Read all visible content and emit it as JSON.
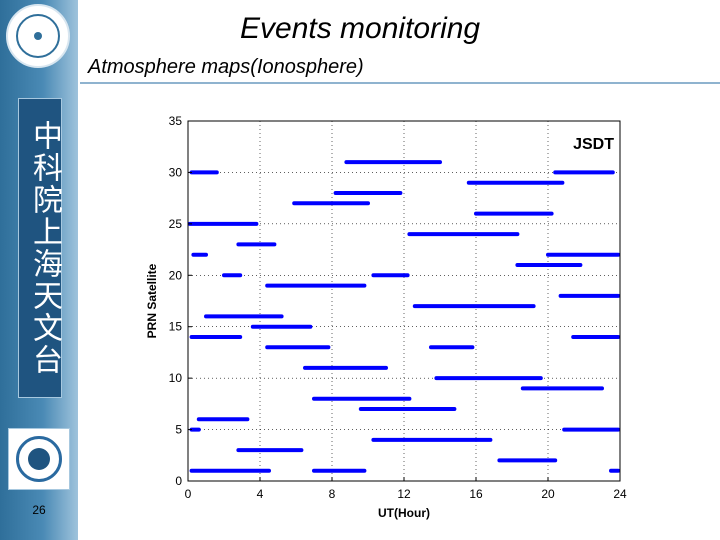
{
  "slide": {
    "title": "Events monitoring",
    "subtitle": "Atmosphere maps(Ionosphere)",
    "organization": "中科院上海天文台",
    "page_number": "26",
    "accent_color": "#2f6f9a"
  },
  "chart_data": {
    "type": "scatter",
    "annotation": "JSDT",
    "xlabel": "UT(Hour)",
    "ylabel": "PRN Satellite",
    "xlim": [
      0,
      24
    ],
    "ylim": [
      0,
      35
    ],
    "xticks": [
      "0",
      "4",
      "8",
      "12",
      "16",
      "20",
      "24"
    ],
    "yticks": [
      "0",
      "5",
      "10",
      "15",
      "20",
      "25",
      "30",
      "35"
    ],
    "grid": true,
    "marker_color": "#0000ff",
    "tracks": [
      {
        "prn": 30,
        "start": 0.2,
        "end": 1.6
      },
      {
        "prn": 25,
        "start": 0.1,
        "end": 3.8
      },
      {
        "prn": 22,
        "start": 0.3,
        "end": 1.0
      },
      {
        "prn": 20,
        "start": 2.0,
        "end": 2.9
      },
      {
        "prn": 16,
        "start": 1.0,
        "end": 5.2
      },
      {
        "prn": 14,
        "start": 0.2,
        "end": 2.9
      },
      {
        "prn": 6,
        "start": 0.6,
        "end": 3.3
      },
      {
        "prn": 1,
        "start": 0.2,
        "end": 4.5
      },
      {
        "prn": 3,
        "start": 2.8,
        "end": 6.3
      },
      {
        "prn": 5,
        "start": 0.2,
        "end": 0.6
      },
      {
        "prn": 23,
        "start": 2.8,
        "end": 4.8
      },
      {
        "prn": 19,
        "start": 4.4,
        "end": 9.8
      },
      {
        "prn": 15,
        "start": 3.6,
        "end": 6.8
      },
      {
        "prn": 13,
        "start": 4.4,
        "end": 7.8
      },
      {
        "prn": 27,
        "start": 5.9,
        "end": 10.0
      },
      {
        "prn": 31,
        "start": 8.8,
        "end": 14.0
      },
      {
        "prn": 28,
        "start": 8.2,
        "end": 11.8
      },
      {
        "prn": 11,
        "start": 6.5,
        "end": 11.0
      },
      {
        "prn": 8,
        "start": 7.0,
        "end": 12.3
      },
      {
        "prn": 1,
        "start": 7.0,
        "end": 9.8
      },
      {
        "prn": 20,
        "start": 10.3,
        "end": 12.2
      },
      {
        "prn": 7,
        "start": 9.6,
        "end": 14.8
      },
      {
        "prn": 4,
        "start": 10.3,
        "end": 16.8
      },
      {
        "prn": 24,
        "start": 12.3,
        "end": 18.3
      },
      {
        "prn": 17,
        "start": 12.6,
        "end": 19.2
      },
      {
        "prn": 13,
        "start": 13.5,
        "end": 15.8
      },
      {
        "prn": 10,
        "start": 13.8,
        "end": 19.6
      },
      {
        "prn": 29,
        "start": 15.6,
        "end": 20.8
      },
      {
        "prn": 26,
        "start": 16.0,
        "end": 20.2
      },
      {
        "prn": 21,
        "start": 18.3,
        "end": 21.8
      },
      {
        "prn": 22,
        "start": 20.0,
        "end": 23.9
      },
      {
        "prn": 30,
        "start": 20.4,
        "end": 23.6
      },
      {
        "prn": 18,
        "start": 20.7,
        "end": 23.9
      },
      {
        "prn": 14,
        "start": 21.4,
        "end": 23.9
      },
      {
        "prn": 9,
        "start": 18.6,
        "end": 23.0
      },
      {
        "prn": 5,
        "start": 20.9,
        "end": 23.9
      },
      {
        "prn": 2,
        "start": 17.3,
        "end": 20.4
      },
      {
        "prn": 1,
        "start": 23.5,
        "end": 23.9
      }
    ]
  }
}
